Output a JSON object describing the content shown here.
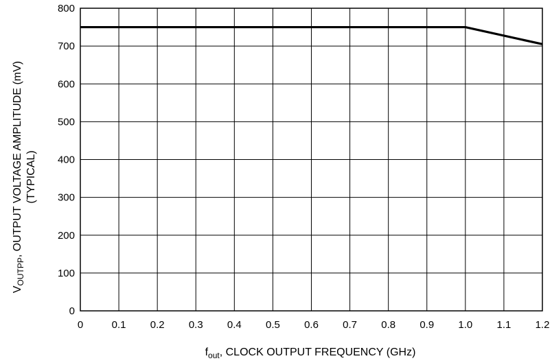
{
  "chart_data": {
    "type": "line",
    "title": "",
    "xlabel": {
      "main": "f",
      "sub": "out",
      "rest": ", CLOCK OUTPUT FREQUENCY (GHz)"
    },
    "ylabel": {
      "line1_main": "V",
      "line1_sub": "OUTPP",
      "line1_rest": ", OUTPUT VOLTAGE AMPLITUDE (mV)",
      "line2": "(TYPICAL)"
    },
    "xlim": [
      0,
      1.2
    ],
    "ylim": [
      0,
      800
    ],
    "x_ticks": [
      "0",
      "0.1",
      "0.2",
      "0.3",
      "0.4",
      "0.5",
      "0.6",
      "0.7",
      "0.8",
      "0.9",
      "1.0",
      "1.1",
      "1.2"
    ],
    "y_ticks": [
      "0",
      "100",
      "200",
      "300",
      "400",
      "500",
      "600",
      "700",
      "800"
    ],
    "grid": true,
    "series": [
      {
        "x": [
          0,
          1.0,
          1.2
        ],
        "y": [
          750,
          750,
          705
        ]
      }
    ]
  }
}
